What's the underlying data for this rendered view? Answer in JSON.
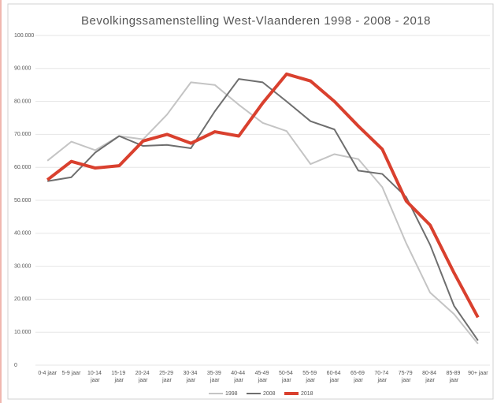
{
  "chart_data": {
    "type": "line",
    "title": "Bevolkingssamenstelling West-Vlaanderen 1998 - 2008 - 2018",
    "categories": [
      "0-4 jaar",
      "5-9 jaar",
      "10-14 jaar",
      "15-19 jaar",
      "20-24 jaar",
      "25-29 jaar",
      "30-34 jaar",
      "35-39 jaar",
      "40-44 jaar",
      "45-49 jaar",
      "50-54 jaar",
      "55-59 jaar",
      "60-64 jaar",
      "65-69 jaar",
      "70-74 jaar",
      "75-79 jaar",
      "80-84 jaar",
      "85-89 jaar",
      "90+ jaar"
    ],
    "series": [
      {
        "name": "1998",
        "color": "#c4c4c4",
        "width": 2,
        "values": [
          62000,
          67800,
          65200,
          69500,
          68500,
          76000,
          85800,
          85000,
          79000,
          73500,
          71000,
          61000,
          64000,
          62500,
          54000,
          37000,
          22000,
          15500,
          6500
        ]
      },
      {
        "name": "2008",
        "color": "#6e6e6e",
        "width": 2,
        "values": [
          55800,
          57000,
          64500,
          69500,
          66500,
          66800,
          65800,
          77000,
          86800,
          85800,
          80000,
          74000,
          71500,
          59000,
          58000,
          51000,
          36500,
          18000,
          7500
        ]
      },
      {
        "name": "2018",
        "color": "#d9402e",
        "width": 4,
        "values": [
          56200,
          61800,
          59800,
          60500,
          68000,
          70000,
          67300,
          70800,
          69500,
          79500,
          88300,
          86200,
          80000,
          72500,
          65500,
          49800,
          42500,
          28000,
          14500
        ]
      }
    ],
    "ylim": [
      0,
      100000
    ],
    "yticks": [
      0,
      {
        "value": 10000,
        "label": "10.000"
      },
      {
        "value": 20000,
        "label": "20.000"
      },
      {
        "value": 30000,
        "label": "30.000"
      },
      {
        "value": 40000,
        "label": "40.000"
      },
      {
        "value": 50000,
        "label": "50.000"
      },
      {
        "value": 60000,
        "label": "60.000"
      },
      {
        "value": 70000,
        "label": "70.000"
      },
      {
        "value": 80000,
        "label": "80.000"
      },
      {
        "value": 90000,
        "label": "90.000"
      },
      {
        "value": 100000,
        "label": "100.000"
      }
    ],
    "grid": true,
    "legend": "bottom"
  }
}
